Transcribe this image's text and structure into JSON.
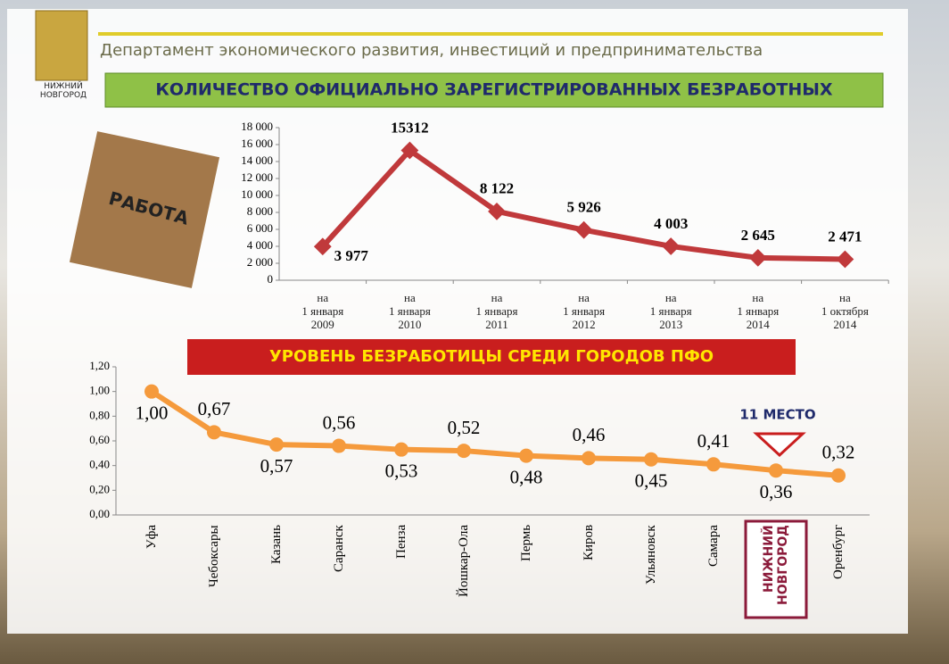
{
  "header": {
    "title": "Департамент экономического развития, инвестиций и предпринимательства",
    "logo": "НИЖНИЙ НОВГОРОД",
    "image_label": "РАБОТА"
  },
  "chart_data": [
    {
      "type": "line",
      "title": "КОЛИЧЕСТВО ОФИЦИАЛЬНО ЗАРЕГИСТРИРОВАННЫХ БЕЗРАБОТНЫХ",
      "color": "#c0393b",
      "categories": [
        "на\n1 января\n2009",
        "на\n1 января\n2010",
        "на\n1 января\n2011",
        "на\n1 января\n2012",
        "на\n1 января\n2013",
        "на\n1 января\n2014",
        "на\n1 октября\n2014"
      ],
      "values": [
        3977,
        15312,
        8122,
        5926,
        4003,
        2645,
        2471
      ],
      "value_labels": [
        "3 977",
        "15312",
        "8 122",
        "5 926",
        "4 003",
        "2 645",
        "2 471"
      ],
      "ylim": [
        0,
        18000
      ],
      "yticks": [
        0,
        {
          "value": 2000,
          "label": "2 000"
        },
        {
          "value": 4000,
          "label": "4 000"
        },
        {
          "value": 6000,
          "label": "6 000"
        },
        {
          "value": 8000,
          "label": "8 000"
        },
        {
          "value": 10000,
          "label": "10 000"
        },
        {
          "value": 12000,
          "label": "12 000"
        },
        {
          "value": 14000,
          "label": "14 000"
        },
        {
          "value": 16000,
          "label": "16 000"
        },
        {
          "value": 18000,
          "label": "18 000"
        }
      ]
    },
    {
      "type": "line",
      "title": "УРОВЕНЬ БЕЗРАБОТИЦЫ СРЕДИ ГОРОДОВ ПФО",
      "color": "#f59a3c",
      "annotation": "11 МЕСТО",
      "categories": [
        "Уфа",
        "Чебоксары",
        "Казань",
        "Саранск",
        "Пенза",
        "Йошкар-Ола",
        "Пермь",
        "Киров",
        "Ульяновск",
        "Самара",
        "НИЖНИЙ\nНОВГОРОД",
        "Оренбург"
      ],
      "values": [
        1.0,
        0.67,
        0.57,
        0.56,
        0.53,
        0.52,
        0.48,
        0.46,
        0.45,
        0.41,
        0.36,
        0.32
      ],
      "value_labels": [
        "1,00",
        "0,67",
        "0,57",
        "0,56",
        "0,53",
        "0,52",
        "0,48",
        "0,46",
        "0,45",
        "0,41",
        "0,36",
        "0,32"
      ],
      "ylim": [
        0,
        1.2
      ],
      "yticks": [
        {
          "value": 0,
          "label": "0,00"
        },
        {
          "value": 0.2,
          "label": "0,20"
        },
        {
          "value": 0.4,
          "label": "0,40"
        },
        {
          "value": 0.6,
          "label": "0,60"
        },
        {
          "value": 0.8,
          "label": "0,80"
        },
        {
          "value": 1.0,
          "label": "1,00"
        },
        {
          "value": 1.2,
          "label": "1,20"
        }
      ]
    }
  ]
}
